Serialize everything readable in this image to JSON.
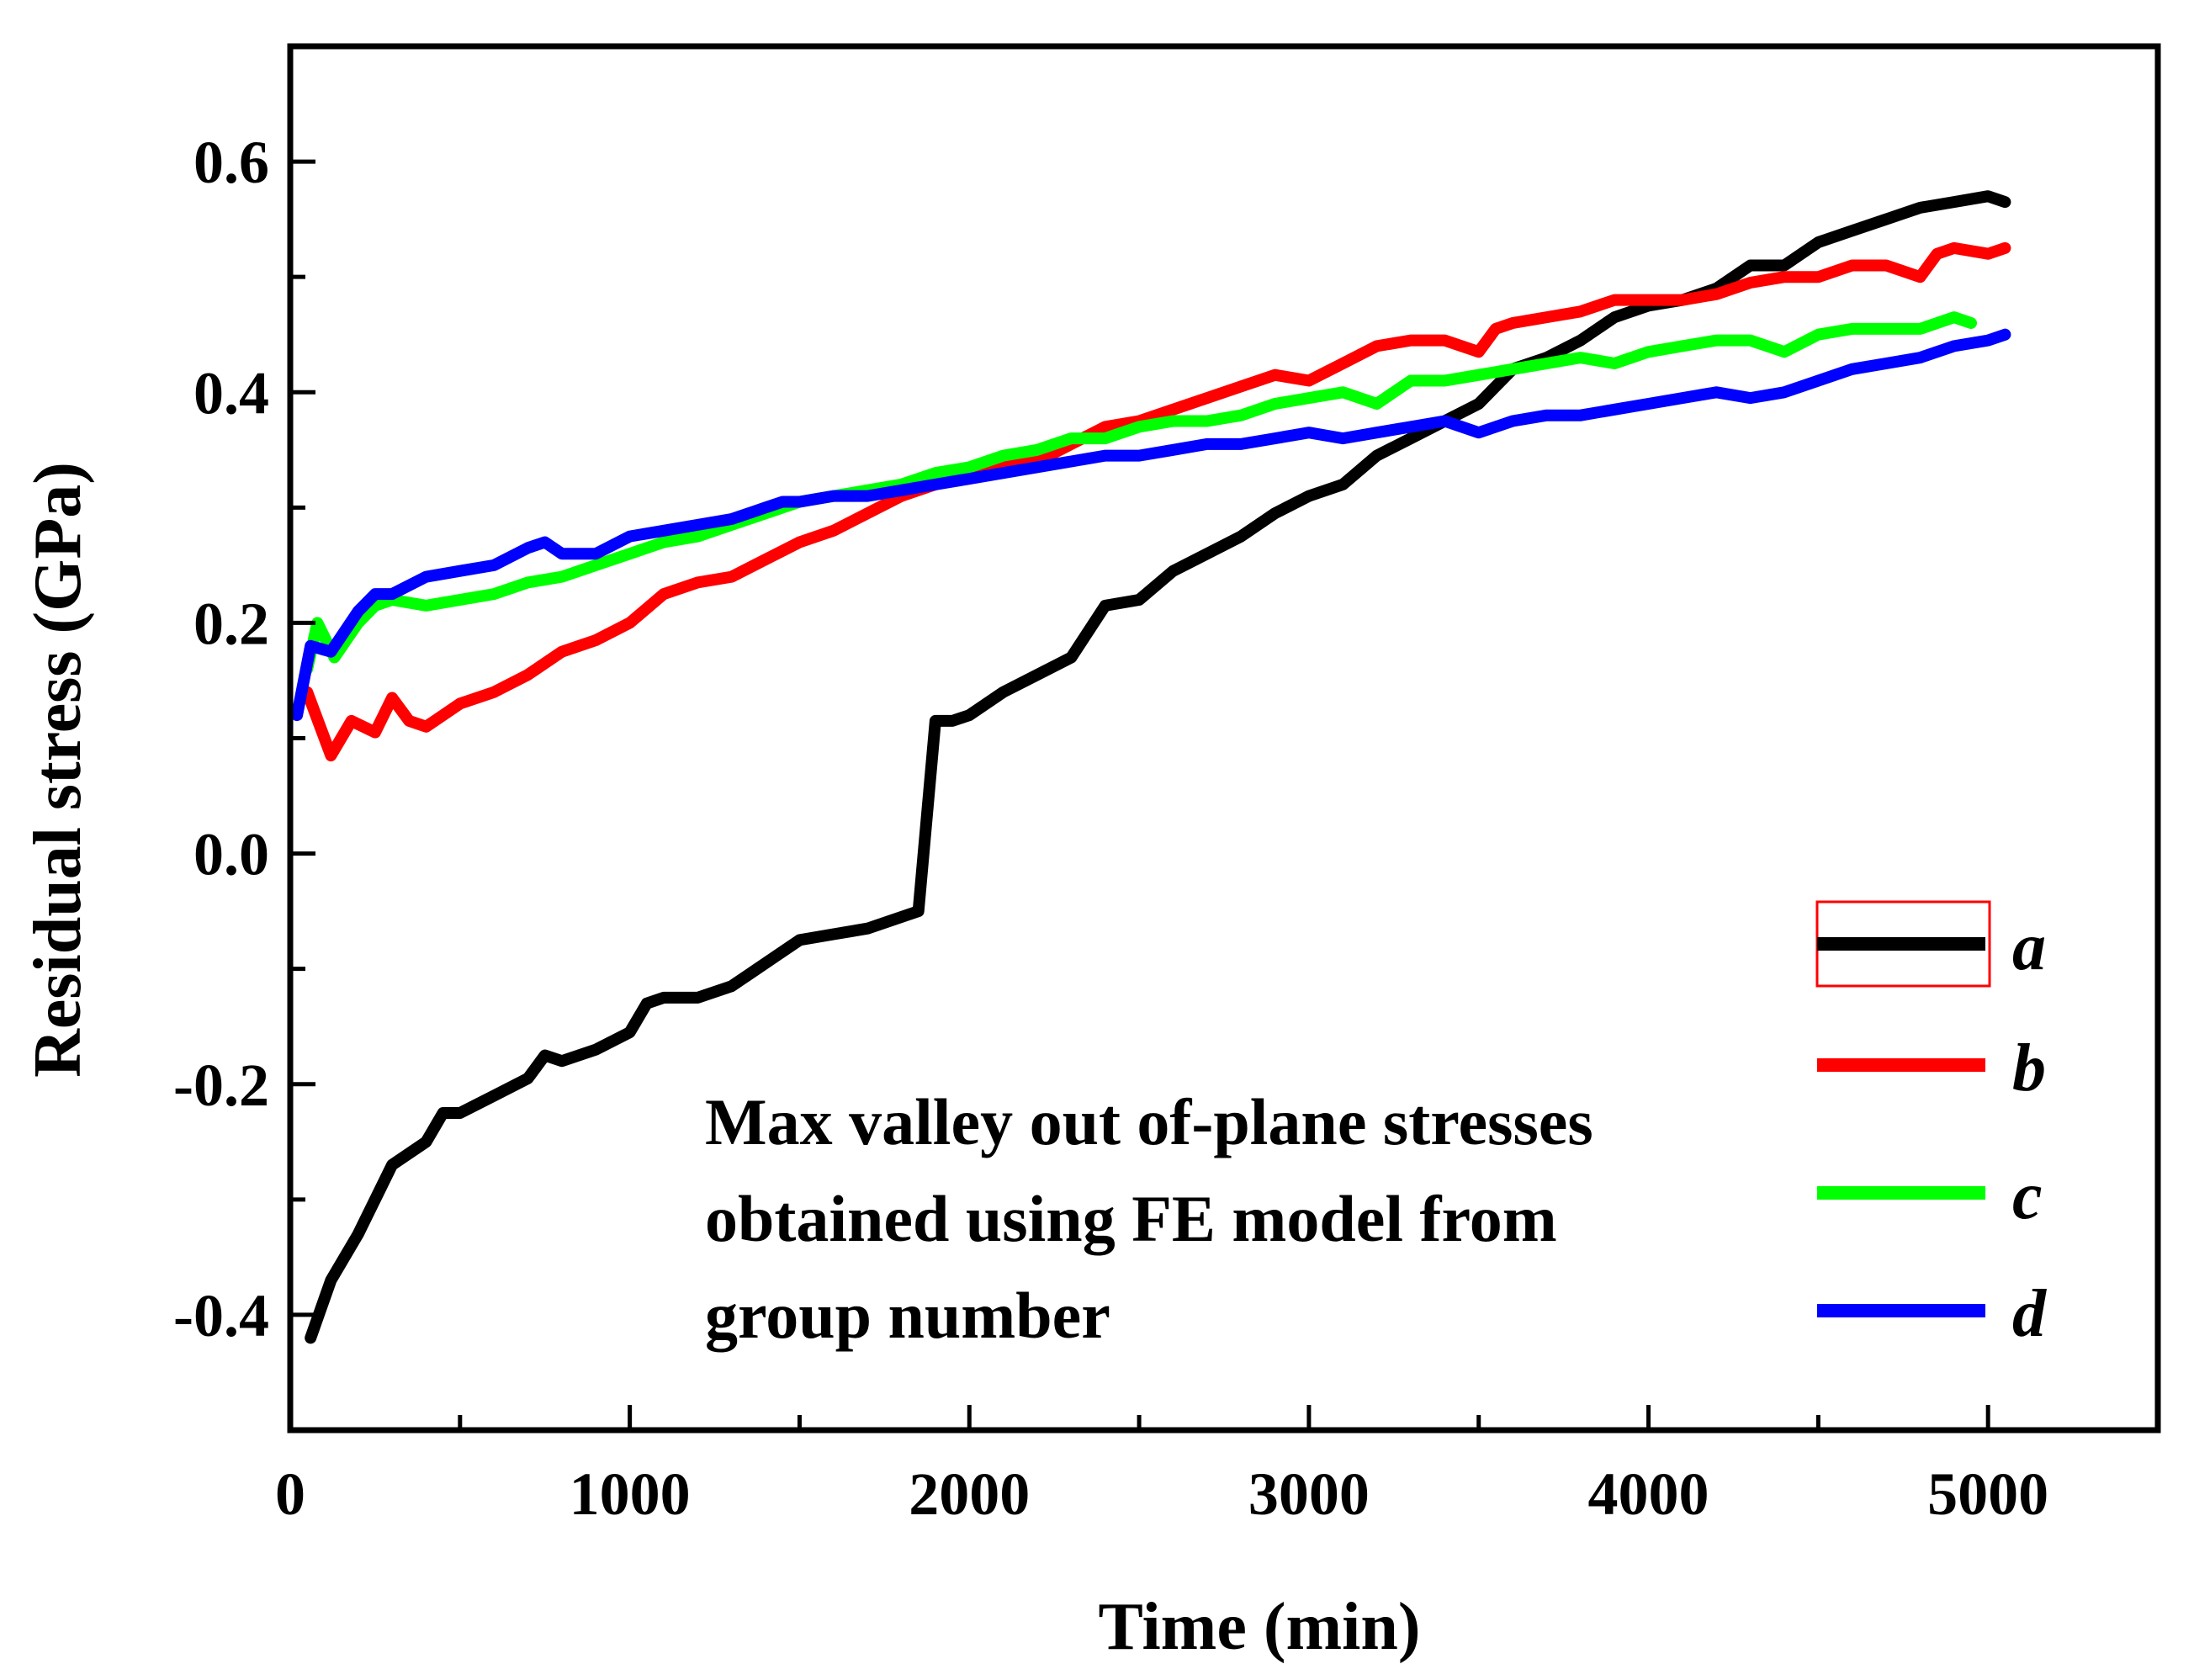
{
  "chart_data": {
    "type": "line",
    "title": "",
    "xlabel": "Time (min)",
    "ylabel": "Residual stress (GPa)",
    "xlim": [
      0,
      5500
    ],
    "ylim": [
      -0.5,
      0.7
    ],
    "xticks": [
      0,
      1000,
      2000,
      3000,
      4000,
      5000
    ],
    "xtick_labels": [
      "0",
      "1000",
      "2000",
      "3000",
      "4000",
      "5000"
    ],
    "yticks": [
      -0.4,
      -0.2,
      0.0,
      0.2,
      0.4,
      0.6
    ],
    "ytick_labels": [
      "-0.4",
      "-0.2",
      "0.0",
      "0.2",
      "0.4",
      "0.6"
    ],
    "grid": false,
    "legend_position": "right",
    "annotation": [
      "Max valley out of-plane stresses",
      "obtained using FE model from",
      "group number"
    ],
    "series": [
      {
        "name": "a",
        "color": "#000000",
        "x": [
          60,
          120,
          200,
          300,
          400,
          450,
          500,
          600,
          700,
          750,
          800,
          900,
          1000,
          1050,
          1100,
          1200,
          1300,
          1400,
          1500,
          1600,
          1700,
          1800,
          1850,
          1900,
          1950,
          2000,
          2100,
          2200,
          2300,
          2400,
          2500,
          2600,
          2700,
          2800,
          2900,
          3000,
          3100,
          3200,
          3300,
          3400,
          3500,
          3600,
          3700,
          3800,
          3900,
          4000,
          4100,
          4200,
          4300,
          4400,
          4500,
          4600,
          4700,
          4800,
          4900,
          5000,
          5050
        ],
        "y": [
          -0.42,
          -0.37,
          -0.33,
          -0.27,
          -0.25,
          -0.225,
          -0.225,
          -0.21,
          -0.195,
          -0.175,
          -0.18,
          -0.17,
          -0.155,
          -0.13,
          -0.125,
          -0.125,
          -0.115,
          -0.095,
          -0.075,
          -0.07,
          -0.065,
          -0.055,
          -0.05,
          0.115,
          0.115,
          0.12,
          0.14,
          0.155,
          0.17,
          0.215,
          0.22,
          0.245,
          0.26,
          0.275,
          0.295,
          0.31,
          0.32,
          0.345,
          0.36,
          0.375,
          0.39,
          0.42,
          0.43,
          0.445,
          0.465,
          0.475,
          0.48,
          0.49,
          0.51,
          0.51,
          0.53,
          0.54,
          0.55,
          0.56,
          0.565,
          0.57,
          0.565
        ]
      },
      {
        "name": "b",
        "color": "#ff0000",
        "x": [
          50,
          120,
          180,
          250,
          300,
          350,
          400,
          500,
          600,
          700,
          800,
          900,
          1000,
          1100,
          1200,
          1300,
          1400,
          1500,
          1600,
          1700,
          1800,
          1900,
          2000,
          2100,
          2200,
          2300,
          2400,
          2500,
          2600,
          2700,
          2800,
          2900,
          3000,
          3100,
          3200,
          3300,
          3400,
          3500,
          3550,
          3600,
          3700,
          3800,
          3900,
          4000,
          4100,
          4200,
          4300,
          4400,
          4500,
          4600,
          4700,
          4800,
          4850,
          4900,
          5000,
          5050
        ],
        "y": [
          0.14,
          0.085,
          0.115,
          0.105,
          0.135,
          0.115,
          0.11,
          0.13,
          0.14,
          0.155,
          0.175,
          0.185,
          0.2,
          0.225,
          0.235,
          0.24,
          0.255,
          0.27,
          0.28,
          0.295,
          0.31,
          0.32,
          0.33,
          0.335,
          0.34,
          0.355,
          0.37,
          0.375,
          0.385,
          0.395,
          0.405,
          0.415,
          0.41,
          0.425,
          0.44,
          0.445,
          0.445,
          0.435,
          0.455,
          0.46,
          0.465,
          0.47,
          0.48,
          0.48,
          0.48,
          0.485,
          0.495,
          0.5,
          0.5,
          0.51,
          0.51,
          0.5,
          0.52,
          0.525,
          0.52,
          0.525
        ]
      },
      {
        "name": "c",
        "color": "#00ff00",
        "x": [
          50,
          80,
          130,
          200,
          250,
          300,
          400,
          500,
          600,
          700,
          800,
          900,
          1000,
          1100,
          1200,
          1300,
          1400,
          1500,
          1600,
          1700,
          1800,
          1900,
          2000,
          2100,
          2200,
          2300,
          2400,
          2500,
          2600,
          2700,
          2800,
          2900,
          3000,
          3100,
          3200,
          3300,
          3400,
          3500,
          3600,
          3700,
          3800,
          3900,
          4000,
          4100,
          4200,
          4300,
          4400,
          4500,
          4600,
          4700,
          4800,
          4900,
          4950
        ],
        "y": [
          0.16,
          0.2,
          0.17,
          0.2,
          0.215,
          0.22,
          0.215,
          0.22,
          0.225,
          0.235,
          0.24,
          0.25,
          0.26,
          0.27,
          0.275,
          0.285,
          0.295,
          0.305,
          0.31,
          0.315,
          0.32,
          0.33,
          0.335,
          0.345,
          0.35,
          0.36,
          0.36,
          0.37,
          0.375,
          0.375,
          0.38,
          0.39,
          0.395,
          0.4,
          0.39,
          0.41,
          0.41,
          0.415,
          0.42,
          0.425,
          0.43,
          0.425,
          0.435,
          0.44,
          0.445,
          0.445,
          0.435,
          0.45,
          0.455,
          0.455,
          0.455,
          0.465,
          0.46
        ]
      },
      {
        "name": "d",
        "color": "#0000ff",
        "x": [
          20,
          60,
          120,
          200,
          250,
          300,
          400,
          500,
          600,
          700,
          750,
          800,
          900,
          1000,
          1100,
          1200,
          1300,
          1400,
          1450,
          1500,
          1600,
          1700,
          1800,
          1900,
          2000,
          2100,
          2200,
          2300,
          2400,
          2500,
          2600,
          2700,
          2800,
          2900,
          3000,
          3100,
          3200,
          3300,
          3400,
          3500,
          3550,
          3600,
          3700,
          3800,
          3900,
          4000,
          4100,
          4200,
          4300,
          4400,
          4500,
          4600,
          4700,
          4800,
          4900,
          5000,
          5050
        ],
        "y": [
          0.12,
          0.18,
          0.175,
          0.21,
          0.225,
          0.225,
          0.24,
          0.245,
          0.25,
          0.265,
          0.27,
          0.26,
          0.26,
          0.275,
          0.28,
          0.285,
          0.29,
          0.3,
          0.305,
          0.305,
          0.31,
          0.31,
          0.315,
          0.32,
          0.325,
          0.33,
          0.335,
          0.34,
          0.345,
          0.345,
          0.35,
          0.355,
          0.355,
          0.36,
          0.365,
          0.36,
          0.365,
          0.37,
          0.375,
          0.365,
          0.37,
          0.375,
          0.38,
          0.38,
          0.385,
          0.39,
          0.395,
          0.4,
          0.395,
          0.4,
          0.41,
          0.42,
          0.425,
          0.43,
          0.44,
          0.445,
          0.45
        ]
      }
    ]
  }
}
